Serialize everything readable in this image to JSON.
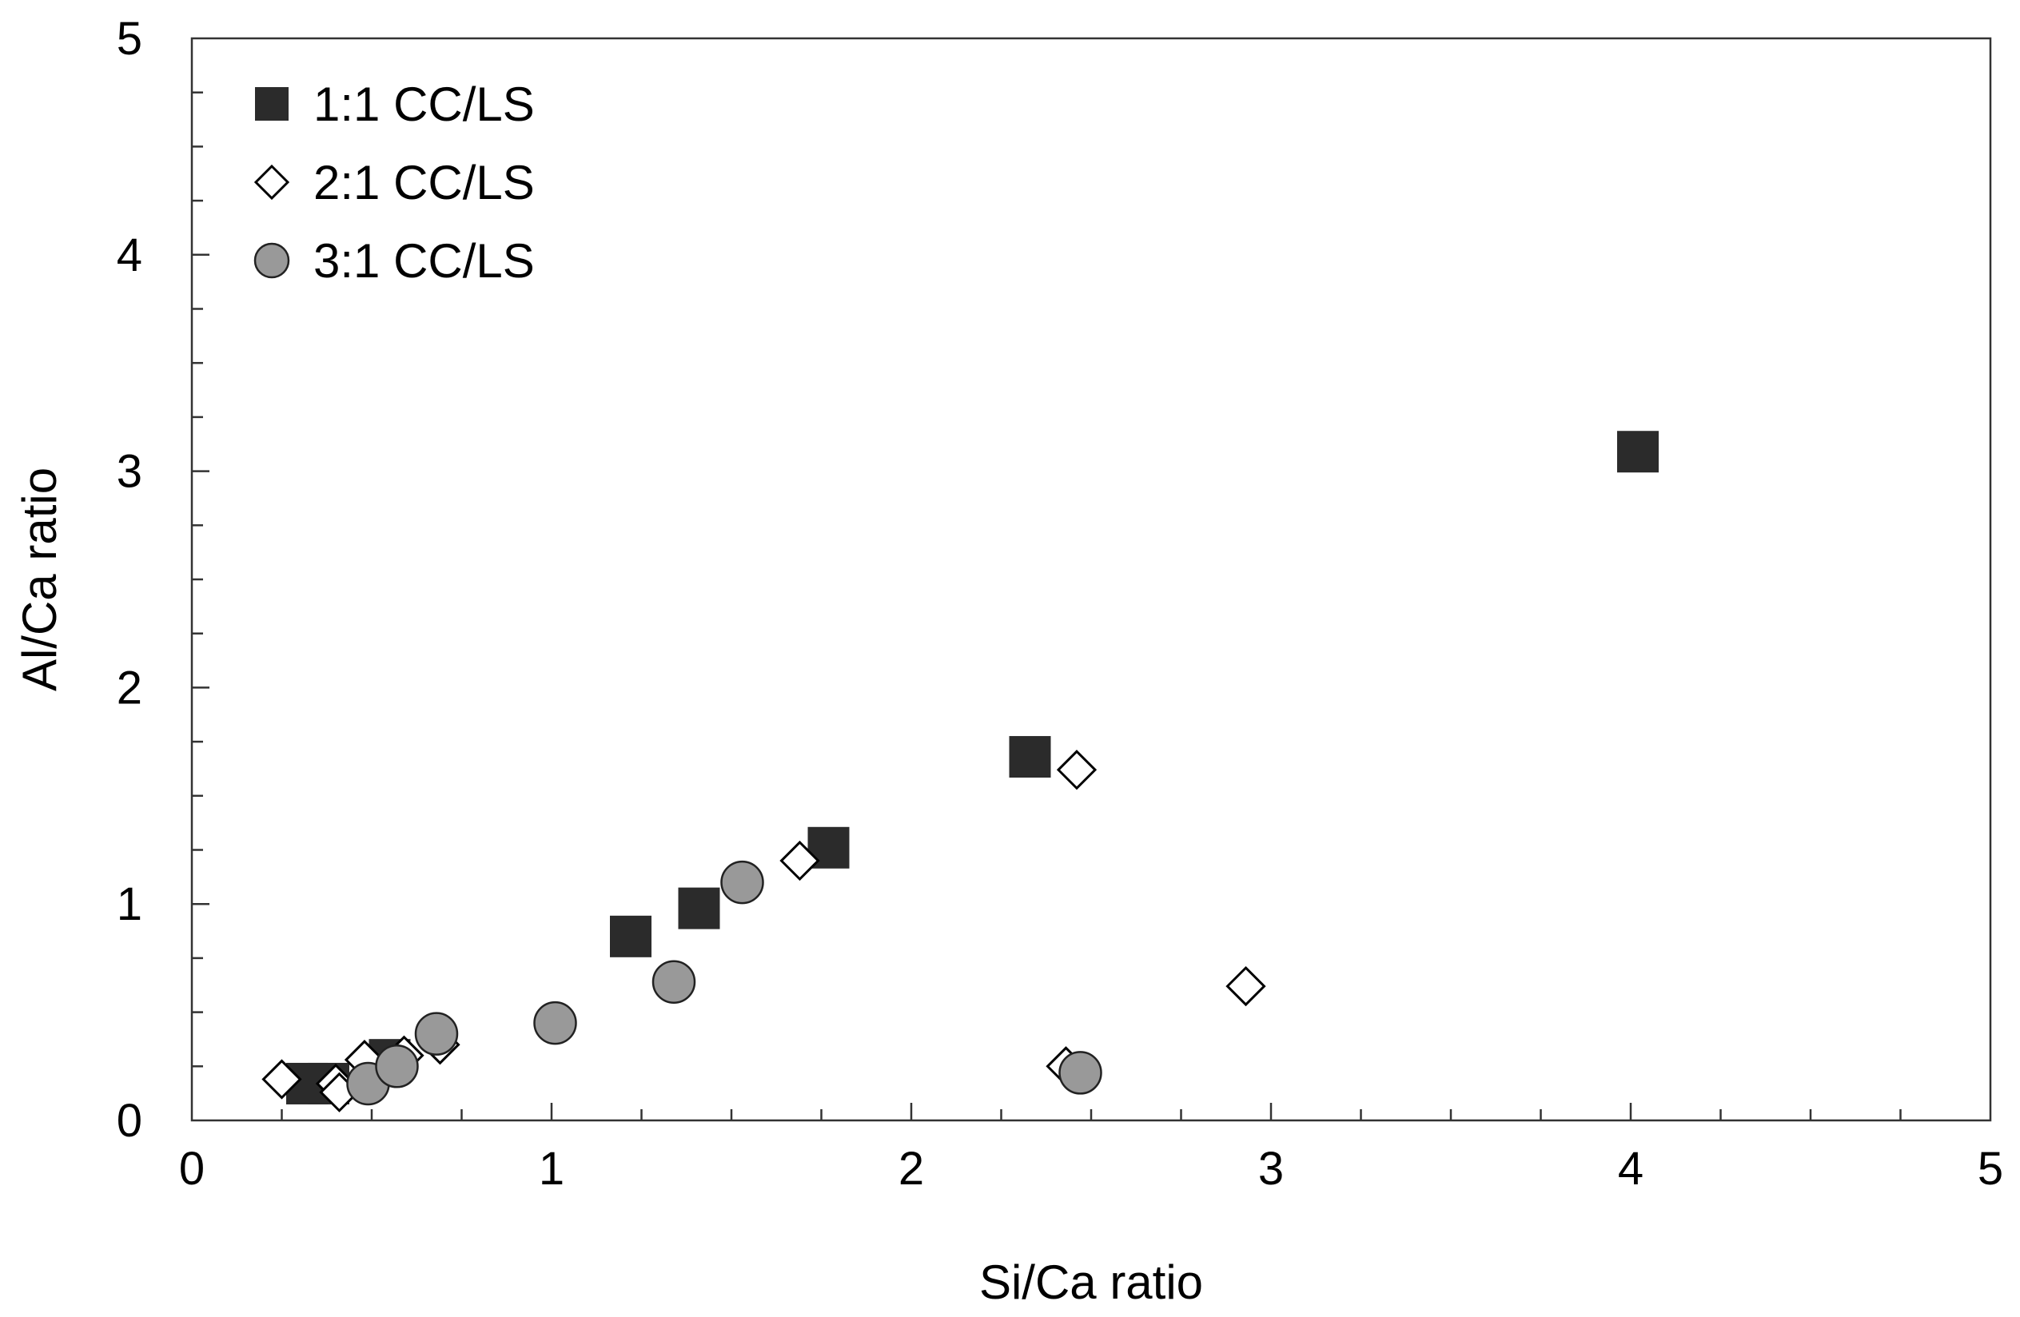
{
  "chart_data": {
    "type": "scatter",
    "title": "",
    "xlabel": "Si/Ca ratio",
    "ylabel": "Al/Ca ratio",
    "xlim": [
      0,
      5
    ],
    "ylim": [
      0,
      5
    ],
    "xticks": [
      0,
      1,
      2,
      3,
      4,
      5
    ],
    "yticks": [
      0,
      1,
      2,
      3,
      4,
      5
    ],
    "xtick_labels": [
      "0",
      "1",
      "2",
      "3",
      "4",
      "5"
    ],
    "ytick_labels": [
      "0",
      "1",
      "2",
      "3",
      "4",
      "5"
    ],
    "x_minor_step": 0.25,
    "y_minor_step": 0.25,
    "grid": false,
    "legend_position": "top-left",
    "series": [
      {
        "name": "1:1 CC/LS",
        "marker": "square",
        "fill": "#2b2b2b",
        "stroke": "#2b2b2b",
        "points": [
          {
            "x": 0.32,
            "y": 0.17
          },
          {
            "x": 0.38,
            "y": 0.17
          },
          {
            "x": 0.55,
            "y": 0.28
          },
          {
            "x": 1.22,
            "y": 0.85
          },
          {
            "x": 1.41,
            "y": 0.98
          },
          {
            "x": 1.77,
            "y": 1.26
          },
          {
            "x": 2.33,
            "y": 1.68
          },
          {
            "x": 4.02,
            "y": 3.09
          }
        ]
      },
      {
        "name": "2:1 CC/LS",
        "marker": "diamond",
        "fill": "#ffffff",
        "stroke": "#000000",
        "points": [
          {
            "x": 0.25,
            "y": 0.19
          },
          {
            "x": 0.4,
            "y": 0.17
          },
          {
            "x": 0.41,
            "y": 0.13
          },
          {
            "x": 0.48,
            "y": 0.28
          },
          {
            "x": 0.59,
            "y": 0.3
          },
          {
            "x": 0.69,
            "y": 0.35
          },
          {
            "x": 1.69,
            "y": 1.2
          },
          {
            "x": 2.46,
            "y": 1.62
          },
          {
            "x": 2.93,
            "y": 0.62
          },
          {
            "x": 2.43,
            "y": 0.25
          }
        ]
      },
      {
        "name": "3:1 CC/LS",
        "marker": "circle",
        "fill": "#999999",
        "stroke": "#222222",
        "points": [
          {
            "x": 0.49,
            "y": 0.17
          },
          {
            "x": 0.57,
            "y": 0.25
          },
          {
            "x": 0.68,
            "y": 0.4
          },
          {
            "x": 1.01,
            "y": 0.45
          },
          {
            "x": 1.34,
            "y": 0.64
          },
          {
            "x": 1.53,
            "y": 1.1
          },
          {
            "x": 2.47,
            "y": 0.22
          }
        ]
      }
    ]
  }
}
